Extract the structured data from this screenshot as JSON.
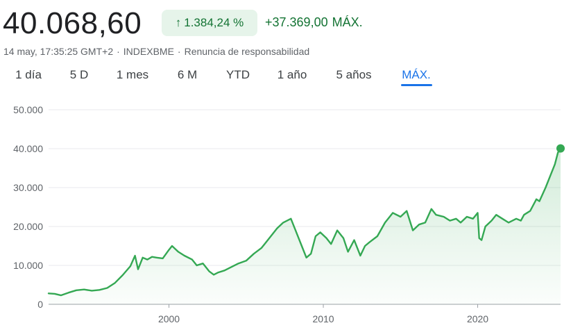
{
  "quote": {
    "price": "40.068,60",
    "change_pct": "1.384,24 %",
    "change_abs": "+37.369,00",
    "change_period": "MÁX.",
    "timestamp": "14 may, 17:35:25 GMT+2",
    "exchange": "INDEXBME",
    "disclaimer": "Renuncia de responsabilidad"
  },
  "tabs": [
    {
      "label": "1 día",
      "active": false
    },
    {
      "label": "5 D",
      "active": false
    },
    {
      "label": "1 mes",
      "active": false
    },
    {
      "label": "6 M",
      "active": false
    },
    {
      "label": "YTD",
      "active": false
    },
    {
      "label": "1 año",
      "active": false
    },
    {
      "label": "5 años",
      "active": false
    },
    {
      "label": "MÁX.",
      "active": true
    }
  ],
  "colors": {
    "positive": "#137333",
    "line": "#34a853",
    "accent": "#1a73e8"
  },
  "chart_data": {
    "type": "area",
    "title": "",
    "xlabel": "",
    "ylabel": "",
    "ylim": [
      0,
      50000
    ],
    "xlim": [
      1992.2,
      2025.37
    ],
    "grid": true,
    "yticks": [
      "0",
      "10.000",
      "20.000",
      "30.000",
      "40.000",
      "50.000"
    ],
    "ytick_values": [
      0,
      10000,
      20000,
      30000,
      40000,
      50000
    ],
    "xticks": [
      "2000",
      "2010",
      "2020"
    ],
    "xtick_values": [
      2000,
      2010,
      2020
    ],
    "series": [
      {
        "x": [
          1992.2,
          1992.6,
          1993.0,
          1993.5,
          1994.0,
          1994.5,
          1995.0,
          1995.5,
          1996.0,
          1996.5,
          1997.0,
          1997.5,
          1997.8,
          1998.0,
          1998.3,
          1998.6,
          1998.9,
          1999.2,
          1999.6,
          2000.0,
          2000.2,
          2000.6,
          2001.0,
          2001.5,
          2001.8,
          2002.2,
          2002.6,
          2002.9,
          2003.2,
          2003.6,
          2004.0,
          2004.5,
          2005.0,
          2005.5,
          2006.0,
          2006.5,
          2007.0,
          2007.4,
          2007.9,
          2008.2,
          2008.6,
          2008.9,
          2009.2,
          2009.5,
          2009.8,
          2010.2,
          2010.5,
          2010.9,
          2011.3,
          2011.6,
          2012.0,
          2012.4,
          2012.7,
          2013.0,
          2013.5,
          2014.0,
          2014.5,
          2015.0,
          2015.4,
          2015.8,
          2016.2,
          2016.6,
          2017.0,
          2017.3,
          2017.8,
          2018.2,
          2018.6,
          2018.9,
          2019.3,
          2019.7,
          2020.0,
          2020.1,
          2020.25,
          2020.5,
          2020.9,
          2021.2,
          2021.6,
          2022.0,
          2022.5,
          2022.8,
          2023.0,
          2023.4,
          2023.8,
          2024.0,
          2024.4,
          2024.7,
          2025.0,
          2025.2,
          2025.37
        ],
        "values": [
          2800,
          2700,
          2300,
          3000,
          3600,
          3800,
          3500,
          3700,
          4200,
          5500,
          7500,
          9800,
          12500,
          9000,
          12000,
          11500,
          12200,
          12000,
          11800,
          14000,
          15000,
          13500,
          12500,
          11500,
          10000,
          10500,
          8500,
          7600,
          8200,
          8700,
          9500,
          10500,
          11200,
          13000,
          14500,
          17000,
          19500,
          21000,
          22000,
          19000,
          15000,
          12000,
          13000,
          17500,
          18500,
          17000,
          15500,
          19000,
          17000,
          13500,
          16500,
          12500,
          15000,
          16000,
          17500,
          21000,
          23500,
          22500,
          24000,
          19000,
          20500,
          21000,
          24500,
          23000,
          22500,
          21500,
          22000,
          21000,
          22500,
          22000,
          23500,
          17000,
          16500,
          20000,
          21500,
          23000,
          22000,
          21000,
          22000,
          21500,
          23000,
          24000,
          27000,
          26500,
          30000,
          33000,
          36000,
          39000,
          40068.6
        ]
      }
    ]
  }
}
